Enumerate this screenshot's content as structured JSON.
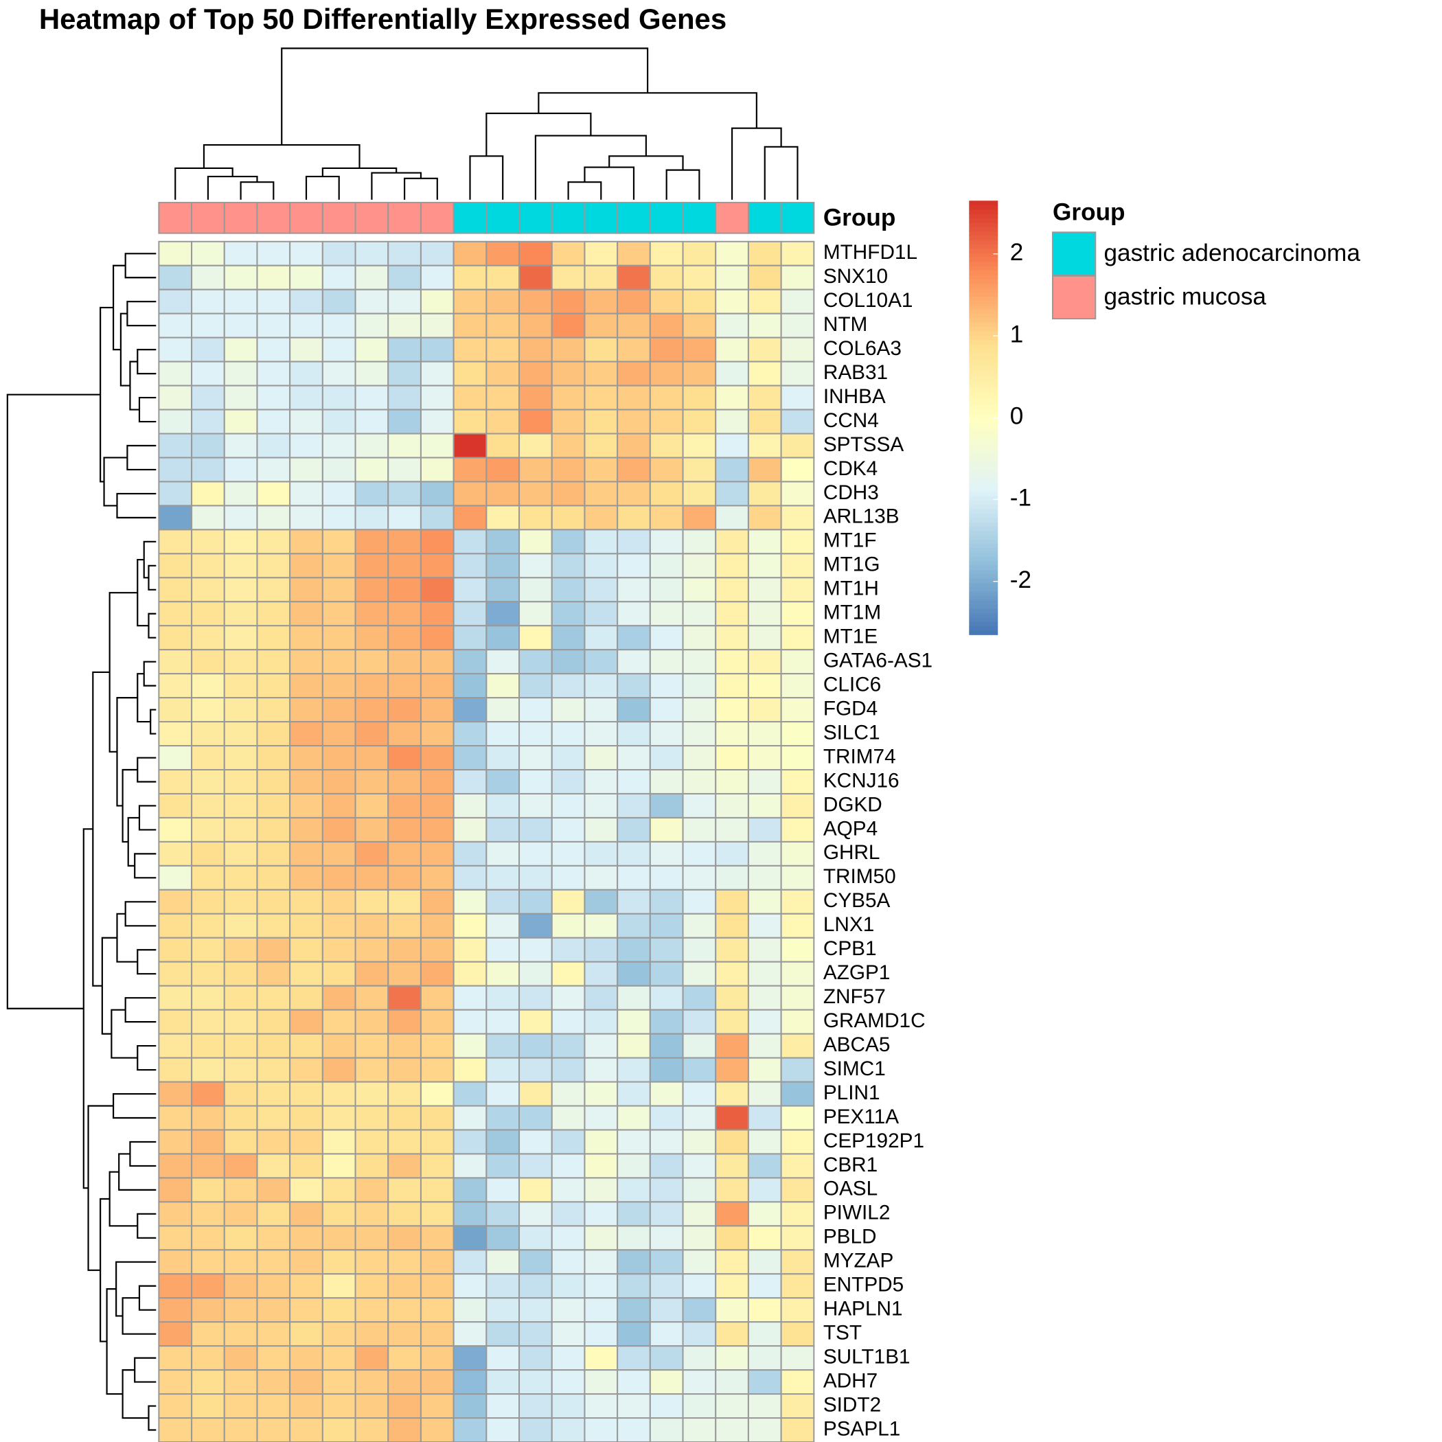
{
  "chart_data": {
    "type": "heatmap",
    "title": "Heatmap of Top 50 Differentially Expressed Genes",
    "rows": [
      "MTHFD1L",
      "SNX10",
      "COL10A1",
      "NTM",
      "COL6A3",
      "RAB31",
      "INHBA",
      "CCN4",
      "SPTSSA",
      "CDK4",
      "CDH3",
      "ARL13B",
      "MT1F",
      "MT1G",
      "MT1H",
      "MT1M",
      "MT1E",
      "GATA6-AS1",
      "CLIC6",
      "FGD4",
      "SILC1",
      "TRIM74",
      "KCNJ16",
      "DGKD",
      "AQP4",
      "GHRL",
      "TRIM50",
      "CYB5A",
      "LNX1",
      "CPB1",
      "AZGP1",
      "ZNF57",
      "GRAMD1C",
      "ABCA5",
      "SIMC1",
      "PLIN1",
      "PEX11A",
      "CEP192P1",
      "CBR1",
      "OASL",
      "PIWIL2",
      "PBLD",
      "MYZAP",
      "ENTPD5",
      "HAPLN1",
      "TST",
      "SULT1B1",
      "ADH7",
      "SIDT2",
      "PSAPL1"
    ],
    "values": [
      [
        -0.3,
        -0.4,
        -0.9,
        -0.9,
        -0.9,
        -1.1,
        -1.0,
        -1.1,
        -1.1,
        1.3,
        1.6,
        1.8,
        1.0,
        0.4,
        1.1,
        0.4,
        0.6,
        -0.2,
        0.8,
        0.3
      ],
      [
        -1.3,
        -0.6,
        -0.4,
        -0.3,
        -0.4,
        -0.9,
        -0.6,
        -1.3,
        -0.9,
        0.8,
        0.8,
        2.1,
        0.7,
        0.7,
        2.0,
        0.7,
        0.5,
        -0.3,
        0.9,
        -0.3
      ],
      [
        -1.1,
        -0.9,
        -0.9,
        -0.9,
        -1.1,
        -1.3,
        -0.8,
        -0.8,
        -0.3,
        1.1,
        1.2,
        1.4,
        1.6,
        1.3,
        1.5,
        1.0,
        0.8,
        -0.2,
        0.4,
        -0.6
      ],
      [
        -0.9,
        -0.9,
        -0.9,
        -0.9,
        -0.9,
        -0.9,
        -0.6,
        -0.5,
        -0.5,
        1.1,
        1.1,
        1.3,
        1.7,
        1.2,
        1.2,
        1.4,
        1.1,
        -0.6,
        -0.4,
        -0.6
      ],
      [
        -0.9,
        -1.1,
        -0.4,
        -0.9,
        -0.5,
        -0.9,
        -0.4,
        -1.4,
        -1.4,
        1.0,
        1.0,
        1.3,
        1.2,
        0.9,
        1.1,
        1.5,
        1.4,
        -0.3,
        0.5,
        -0.5
      ],
      [
        -0.6,
        -0.9,
        -0.6,
        -0.9,
        -1.0,
        -0.8,
        -0.6,
        -1.3,
        -0.8,
        0.9,
        1.1,
        1.4,
        1.2,
        1.1,
        1.4,
        1.3,
        1.2,
        -0.7,
        0.2,
        -0.6
      ],
      [
        -0.5,
        -1.1,
        -0.6,
        -0.9,
        -1.0,
        -1.0,
        -0.9,
        -1.2,
        -0.8,
        1.0,
        1.0,
        1.5,
        1.1,
        1.0,
        1.1,
        1.0,
        0.9,
        -0.2,
        0.7,
        -0.9
      ],
      [
        -0.7,
        -1.1,
        -0.3,
        -0.9,
        -0.8,
        -1.0,
        -0.9,
        -1.5,
        -0.8,
        0.9,
        1.0,
        1.7,
        1.1,
        0.9,
        1.1,
        1.0,
        0.8,
        -0.5,
        0.8,
        -1.2
      ],
      [
        -1.2,
        -1.3,
        -0.8,
        -1.0,
        -0.9,
        -0.8,
        -0.6,
        -0.4,
        -0.4,
        2.6,
        0.9,
        0.5,
        1.1,
        0.8,
        1.2,
        0.7,
        0.3,
        -0.9,
        0.3,
        0.6
      ],
      [
        -1.2,
        -1.2,
        -0.9,
        -0.8,
        -0.6,
        -0.7,
        -0.4,
        -0.6,
        -0.3,
        1.5,
        1.6,
        1.2,
        1.3,
        1.1,
        1.4,
        1.1,
        0.6,
        -1.4,
        1.2,
        0.0
      ],
      [
        -1.2,
        0.2,
        -0.6,
        0.1,
        -0.8,
        -0.9,
        -1.4,
        -1.3,
        -1.6,
        1.3,
        1.3,
        1.2,
        1.3,
        1.1,
        1.1,
        0.9,
        0.6,
        -1.3,
        0.6,
        -0.2
      ],
      [
        -2.1,
        -0.6,
        -0.8,
        -0.6,
        -0.8,
        -0.9,
        -1.0,
        -0.9,
        -1.3,
        1.6,
        0.4,
        0.8,
        0.9,
        1.1,
        0.9,
        1.0,
        1.4,
        -0.7,
        1.0,
        0.3
      ],
      [
        0.7,
        0.6,
        0.4,
        0.6,
        1.1,
        1.0,
        1.5,
        1.5,
        1.7,
        -1.2,
        -1.6,
        -0.3,
        -1.5,
        -1.0,
        -1.1,
        -0.8,
        -0.6,
        0.5,
        -0.4,
        0.2
      ],
      [
        0.8,
        0.7,
        0.5,
        0.7,
        1.2,
        1.1,
        1.5,
        1.5,
        1.6,
        -1.2,
        -1.6,
        -0.8,
        -1.3,
        -1.0,
        -0.9,
        -0.7,
        -0.5,
        0.4,
        -0.4,
        0.3
      ],
      [
        0.8,
        0.7,
        0.5,
        0.7,
        1.2,
        1.1,
        1.5,
        1.6,
        1.9,
        -1.1,
        -1.6,
        -0.7,
        -1.4,
        -1.1,
        -0.8,
        -0.7,
        -0.4,
        0.4,
        -0.5,
        0.3
      ],
      [
        0.8,
        0.8,
        0.6,
        0.8,
        1.2,
        1.1,
        1.4,
        1.4,
        1.6,
        -1.2,
        -2.0,
        -0.6,
        -1.5,
        -1.2,
        -0.8,
        -0.6,
        -0.6,
        0.4,
        -0.5,
        0.1
      ],
      [
        0.8,
        0.7,
        0.5,
        0.8,
        1.1,
        1.1,
        1.3,
        1.4,
        1.6,
        -1.3,
        -1.7,
        0.2,
        -1.6,
        -1.0,
        -1.5,
        -0.9,
        -0.5,
        0.3,
        -0.5,
        0.2
      ],
      [
        0.6,
        0.8,
        0.7,
        0.8,
        1.1,
        1.1,
        1.1,
        1.2,
        1.2,
        -1.6,
        -0.8,
        -1.4,
        -1.6,
        -1.4,
        -0.8,
        -0.6,
        -0.6,
        0.2,
        0.3,
        -0.3
      ],
      [
        0.5,
        0.3,
        0.7,
        0.8,
        1.2,
        1.2,
        1.3,
        1.3,
        1.3,
        -1.7,
        -0.3,
        -1.3,
        -1.1,
        -1.0,
        -1.3,
        -0.9,
        -0.7,
        0.2,
        0.1,
        -0.3
      ],
      [
        0.6,
        0.4,
        0.6,
        0.8,
        1.2,
        1.3,
        1.4,
        1.5,
        1.3,
        -2.0,
        -0.6,
        -0.9,
        -0.6,
        -0.8,
        -1.7,
        -0.9,
        -0.6,
        0.1,
        0.3,
        -0.2
      ],
      [
        0.4,
        0.6,
        0.6,
        0.9,
        1.4,
        1.3,
        1.5,
        1.3,
        1.2,
        -1.4,
        -0.9,
        -0.9,
        -0.9,
        -0.8,
        -1.0,
        -0.8,
        -0.6,
        -0.2,
        -0.3,
        -0.1
      ],
      [
        -0.4,
        0.7,
        0.6,
        0.9,
        1.2,
        1.3,
        1.3,
        1.7,
        1.5,
        -1.5,
        -1.0,
        -0.8,
        -1.0,
        -0.5,
        -0.8,
        -1.0,
        -0.5,
        0.1,
        -0.2,
        -0.1
      ],
      [
        0.7,
        0.6,
        0.7,
        0.9,
        1.2,
        1.3,
        1.2,
        1.3,
        1.4,
        -1.1,
        -1.5,
        -0.9,
        -1.1,
        -0.8,
        -0.9,
        -0.6,
        -0.5,
        -0.3,
        -0.6,
        0.2
      ],
      [
        0.8,
        0.7,
        0.7,
        0.9,
        1.1,
        1.3,
        1.1,
        1.4,
        1.4,
        -0.6,
        -1.0,
        -0.8,
        -0.9,
        -0.8,
        -1.1,
        -1.6,
        -0.8,
        -0.5,
        -0.4,
        0.4
      ],
      [
        0.2,
        0.6,
        0.7,
        0.9,
        1.2,
        1.4,
        1.2,
        1.4,
        1.4,
        -0.5,
        -1.2,
        -1.2,
        -0.9,
        -0.6,
        -1.3,
        -0.2,
        -0.6,
        -0.6,
        -1.1,
        0.2
      ],
      [
        0.6,
        0.9,
        0.7,
        0.9,
        1.2,
        1.2,
        1.5,
        1.3,
        1.3,
        -1.2,
        -0.8,
        -0.9,
        -0.9,
        -1.0,
        -1.0,
        -0.8,
        -0.9,
        -1.0,
        -0.6,
        -0.3
      ],
      [
        -0.4,
        0.8,
        0.8,
        0.9,
        1.2,
        1.3,
        1.3,
        1.3,
        1.2,
        -1.1,
        -1.0,
        -1.0,
        -0.9,
        -0.8,
        -0.9,
        -0.9,
        -0.8,
        -0.7,
        -0.6,
        -0.4
      ],
      [
        1.0,
        0.9,
        0.8,
        0.9,
        0.9,
        1.0,
        0.8,
        0.7,
        1.3,
        -0.4,
        -1.2,
        -1.4,
        0.3,
        -1.6,
        -1.1,
        -1.3,
        -0.9,
        0.8,
        -0.4,
        0.3
      ],
      [
        0.9,
        0.8,
        0.6,
        0.8,
        0.9,
        1.0,
        1.1,
        1.0,
        1.2,
        0.1,
        -0.8,
        -2.0,
        -0.3,
        -0.4,
        -1.3,
        -1.4,
        -0.6,
        0.8,
        -0.8,
        0.2
      ],
      [
        0.9,
        0.8,
        1.0,
        1.2,
        0.9,
        1.0,
        1.1,
        1.2,
        1.2,
        0.3,
        -0.9,
        -0.9,
        -1.1,
        -1.2,
        -1.5,
        -1.3,
        -0.7,
        0.6,
        -0.6,
        -0.1
      ],
      [
        0.8,
        0.8,
        0.9,
        1.1,
        0.8,
        0.9,
        1.3,
        1.2,
        1.4,
        0.3,
        -0.3,
        -0.7,
        0.2,
        -1.1,
        -1.7,
        -1.4,
        -0.6,
        0.4,
        -0.6,
        -0.3
      ],
      [
        0.6,
        0.6,
        0.8,
        0.8,
        0.9,
        1.3,
        1.1,
        2.0,
        1.1,
        -0.9,
        -1.0,
        -1.1,
        -0.8,
        -1.2,
        -0.7,
        -1.0,
        -1.4,
        0.6,
        -0.6,
        -0.3
      ],
      [
        0.8,
        0.7,
        0.7,
        0.9,
        1.3,
        1.0,
        1.1,
        1.4,
        1.1,
        -0.9,
        -0.9,
        0.3,
        -0.9,
        -1.0,
        -0.4,
        -1.5,
        -1.1,
        0.6,
        -0.8,
        -0.2
      ],
      [
        0.7,
        0.8,
        0.8,
        0.9,
        0.9,
        1.1,
        1.0,
        1.1,
        1.0,
        -0.4,
        -1.3,
        -1.4,
        -1.3,
        -0.8,
        -0.3,
        -1.7,
        -0.7,
        1.5,
        -0.6,
        0.5
      ],
      [
        0.8,
        0.6,
        0.7,
        0.8,
        1.0,
        1.3,
        1.0,
        1.1,
        1.0,
        0.2,
        -1.0,
        -1.1,
        -1.2,
        -0.8,
        -1.0,
        -1.7,
        -1.4,
        1.4,
        -0.4,
        -1.3
      ],
      [
        1.3,
        1.6,
        0.9,
        0.8,
        0.8,
        0.7,
        0.6,
        0.7,
        0.1,
        -1.4,
        -0.9,
        0.5,
        -0.6,
        -0.4,
        -1.0,
        -0.4,
        -0.9,
        0.5,
        -0.6,
        -1.7
      ],
      [
        1.0,
        1.1,
        0.9,
        0.8,
        0.9,
        0.7,
        0.8,
        0.9,
        0.9,
        -0.8,
        -1.4,
        -1.4,
        -0.6,
        -0.8,
        -0.4,
        -1.0,
        -0.8,
        2.2,
        -1.1,
        -0.1
      ],
      [
        1.1,
        1.3,
        0.9,
        1.0,
        1.0,
        0.3,
        0.8,
        0.8,
        0.8,
        -1.2,
        -1.6,
        -0.9,
        -1.2,
        -0.3,
        -0.8,
        -0.8,
        -0.5,
        0.9,
        -0.6,
        0.2
      ],
      [
        1.3,
        1.3,
        1.4,
        0.7,
        0.9,
        0.2,
        0.9,
        1.2,
        0.8,
        -0.8,
        -1.4,
        -1.1,
        -0.9,
        -0.2,
        -0.7,
        -1.2,
        -0.8,
        0.6,
        -1.4,
        0.4
      ],
      [
        1.3,
        0.9,
        1.0,
        1.2,
        0.4,
        0.8,
        1.1,
        0.8,
        0.8,
        -1.6,
        -0.9,
        0.3,
        -0.8,
        -0.5,
        -1.0,
        -1.1,
        -0.7,
        0.7,
        -1.0,
        0.7
      ],
      [
        1.1,
        1.0,
        1.1,
        0.9,
        1.2,
        0.9,
        1.0,
        0.9,
        0.8,
        -1.6,
        -1.3,
        -0.8,
        -1.1,
        -0.9,
        -1.3,
        -1.1,
        -0.5,
        1.6,
        -0.4,
        0.3
      ],
      [
        1.0,
        1.0,
        0.9,
        1.0,
        1.1,
        1.1,
        1.1,
        1.2,
        1.1,
        -2.1,
        -1.6,
        -1.0,
        -0.9,
        -0.5,
        -0.7,
        -0.8,
        -0.5,
        0.9,
        0.1,
        0.3
      ],
      [
        1.1,
        1.0,
        1.0,
        1.0,
        1.1,
        0.9,
        1.0,
        1.0,
        1.1,
        -1.1,
        -0.6,
        -1.5,
        -0.9,
        -0.8,
        -1.6,
        -1.4,
        -0.6,
        0.4,
        -0.7,
        0.7
      ],
      [
        1.5,
        1.5,
        1.2,
        1.1,
        1.0,
        0.4,
        1.0,
        1.1,
        1.1,
        -0.9,
        -1.1,
        -1.2,
        -1.0,
        -0.9,
        -1.3,
        -1.1,
        -0.9,
        0.3,
        -0.9,
        0.7
      ],
      [
        1.4,
        1.2,
        1.1,
        1.1,
        1.0,
        0.9,
        1.0,
        1.0,
        1.0,
        -0.7,
        -1.0,
        -1.0,
        -0.8,
        -0.9,
        -1.6,
        -1.1,
        -1.5,
        -0.2,
        0.1,
        0.4
      ],
      [
        1.5,
        1.0,
        1.0,
        1.0,
        0.9,
        1.0,
        1.1,
        1.1,
        1.1,
        -0.8,
        -1.3,
        -1.2,
        -0.8,
        -0.9,
        -1.7,
        -0.9,
        -1.1,
        0.7,
        -0.7,
        0.8
      ],
      [
        1.0,
        1.0,
        1.2,
        1.0,
        1.1,
        1.0,
        1.4,
        1.0,
        1.1,
        -2.0,
        -0.9,
        -1.2,
        -0.9,
        0.1,
        -1.2,
        -1.3,
        -0.7,
        -0.4,
        -0.7,
        -0.6
      ],
      [
        1.0,
        0.9,
        1.0,
        1.1,
        1.2,
        1.0,
        1.1,
        1.2,
        1.2,
        -1.8,
        -1.0,
        -1.0,
        -0.9,
        -0.6,
        -0.9,
        -0.3,
        -0.8,
        -0.7,
        -1.4,
        0.2
      ],
      [
        1.0,
        0.9,
        1.0,
        1.0,
        1.1,
        1.0,
        1.1,
        1.3,
        1.1,
        -1.7,
        -0.9,
        -1.1,
        -1.0,
        -0.8,
        -0.8,
        -0.9,
        -0.7,
        -0.6,
        -0.6,
        0.5
      ],
      [
        1.0,
        1.0,
        1.0,
        1.0,
        1.0,
        0.9,
        1.0,
        1.3,
        1.1,
        -1.5,
        -0.9,
        -1.2,
        -1.0,
        -0.9,
        -0.9,
        -0.7,
        -0.6,
        -0.6,
        -0.6,
        0.7
      ]
    ],
    "colors": [
      "#4575B4",
      "#91BFDB",
      "#E0F3F8",
      "#FFFFBF",
      "#FEE090",
      "#FC8D59",
      "#D73027"
    ],
    "colorbar": {
      "lim": [
        -2.65,
        2.65
      ],
      "ticks": [
        -2,
        -1,
        0,
        1,
        2
      ]
    },
    "annotation": {
      "track_label": "Group",
      "legend_title": "Group",
      "groups": [
        {
          "name": "gastric adenocarcinoma",
          "color": "#00D8E0"
        },
        {
          "name": "gastric mucosa",
          "color": "#FF938C"
        }
      ],
      "column_groups": [
        1,
        1,
        1,
        1,
        1,
        1,
        1,
        1,
        1,
        0,
        0,
        0,
        0,
        0,
        0,
        0,
        0,
        1,
        0,
        0
      ]
    }
  }
}
